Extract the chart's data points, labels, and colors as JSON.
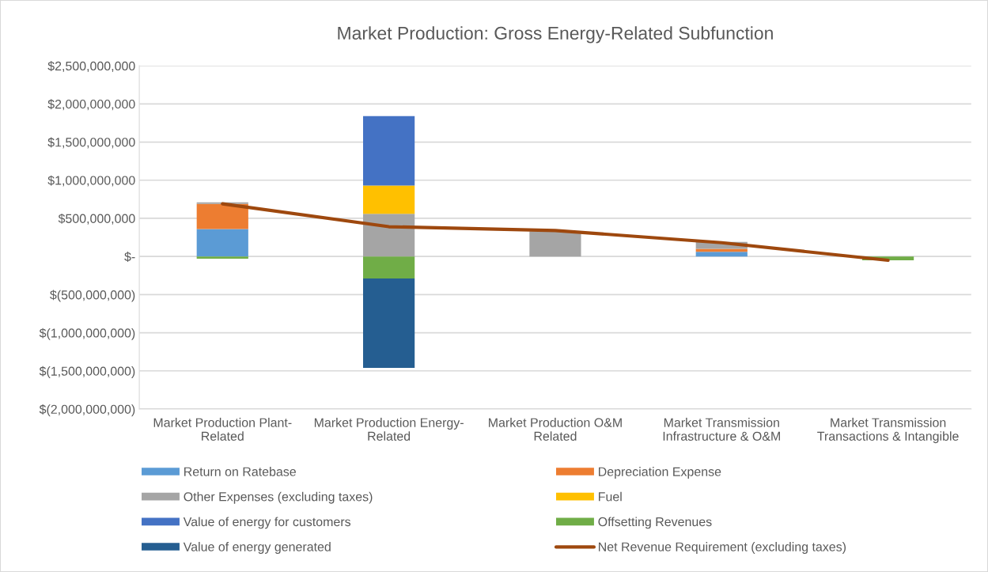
{
  "chart_data": {
    "type": "bar",
    "title": "Market Production: Gross Energy-Related Subfunction",
    "categories": [
      "Market Production Plant-Related",
      "Market Production Energy-Related",
      "Market Production O&M Related",
      "Market Transmission Infrastructure & O&M",
      "Market Transmission Transactions & Intangible"
    ],
    "stacked": true,
    "series": [
      {
        "name": "Return on Ratebase",
        "color": "#5b9bd5",
        "values": [
          360000000,
          null,
          null,
          60000000,
          null
        ]
      },
      {
        "name": "Depreciation Expense",
        "color": "#ed7d31",
        "values": [
          330000000,
          null,
          null,
          40000000,
          null
        ]
      },
      {
        "name": "Other Expenses (excluding taxes)",
        "color": "#a5a5a5",
        "values": [
          20000000,
          560000000,
          330000000,
          90000000,
          null
        ]
      },
      {
        "name": "Fuel",
        "color": "#ffc000",
        "values": [
          null,
          370000000,
          null,
          null,
          null
        ]
      },
      {
        "name": "Value of energy for customers",
        "color": "#4472c4",
        "values": [
          null,
          910000000,
          null,
          null,
          null
        ]
      },
      {
        "name": "Offsetting Revenues",
        "color": "#70ad47",
        "values": [
          -30000000,
          -290000000,
          null,
          null,
          -50000000
        ]
      },
      {
        "name": "Value of energy generated",
        "color": "#255e91",
        "values": [
          null,
          -1170000000,
          null,
          null,
          null
        ]
      },
      {
        "name": "Net Revenue Requirement (excluding taxes)",
        "type": "line",
        "color": "#9e480e",
        "values": [
          690000000,
          390000000,
          340000000,
          180000000,
          -50000000
        ]
      }
    ],
    "ylim": [
      -2000000000,
      2500000000
    ],
    "yticks": [
      {
        "value": -2000000000,
        "label": "$(2,000,000,000)"
      },
      {
        "value": -1500000000,
        "label": "$(1,500,000,000)"
      },
      {
        "value": -1000000000,
        "label": "$(1,000,000,000)"
      },
      {
        "value": -500000000,
        "label": "$(500,000,000)"
      },
      {
        "value": 0,
        "label": "$-"
      },
      {
        "value": 500000000,
        "label": "$500,000,000"
      },
      {
        "value": 1000000000,
        "label": "$1,000,000,000"
      },
      {
        "value": 1500000000,
        "label": "$1,500,000,000"
      },
      {
        "value": 2000000000,
        "label": "$2,000,000,000"
      },
      {
        "value": 2500000000,
        "label": "$2,500,000,000"
      }
    ],
    "grid": "y",
    "legend": "bottom"
  }
}
